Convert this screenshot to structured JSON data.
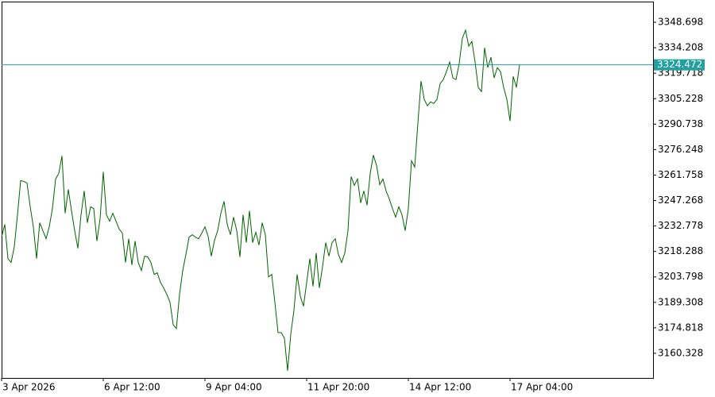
{
  "chart_data": {
    "type": "line",
    "color": "#006400",
    "current_price": 3324.472,
    "current_price_color": "#20a0a0",
    "categories": [
      "3 Apr 2026",
      null,
      null,
      null,
      null,
      null,
      null,
      null,
      null,
      null,
      null,
      null,
      null,
      null,
      null,
      null,
      null,
      null,
      null,
      null,
      null,
      null,
      null,
      null,
      null,
      null,
      null,
      null,
      null,
      null,
      null,
      null,
      "6 Apr 12:00",
      null,
      null,
      null,
      null,
      null,
      null,
      null,
      null,
      null,
      null,
      null,
      null,
      null,
      null,
      null,
      null,
      null,
      null,
      null,
      null,
      null,
      null,
      null,
      null,
      null,
      null,
      null,
      null,
      null,
      null,
      null,
      "9 Apr 04:00",
      null,
      null,
      null,
      null,
      null,
      null,
      null,
      null,
      null,
      null,
      null,
      null,
      null,
      null,
      null,
      null,
      null,
      null,
      null,
      null,
      null,
      null,
      null,
      null,
      null,
      null,
      null,
      null,
      null,
      null,
      null,
      "11 Apr 20:00",
      null,
      null,
      null,
      null,
      null,
      null,
      null,
      null,
      null,
      null,
      null,
      null,
      null,
      null,
      null,
      null,
      null,
      null,
      null,
      null,
      null,
      null,
      null,
      null,
      null,
      null,
      null,
      null,
      null,
      null,
      null,
      "14 Apr 12:00",
      null,
      null,
      null,
      null,
      null,
      null,
      null,
      null,
      null,
      null,
      null,
      null,
      null,
      null,
      null,
      null,
      null,
      null,
      null,
      null,
      null,
      null,
      null,
      null,
      null,
      null,
      null,
      null,
      null,
      null,
      null,
      "17 Apr 04:00",
      null,
      null,
      null
    ],
    "values": [
      3226.4,
      3233.7,
      3214.2,
      3212.0,
      3221.0,
      3239.1,
      3258.6,
      3258.1,
      3257.2,
      3243.7,
      3232.3,
      3214.2,
      3234.6,
      3230.1,
      3225.5,
      3232.3,
      3242.7,
      3259.5,
      3262.7,
      3272.6,
      3240.0,
      3253.6,
      3241.4,
      3230.1,
      3220.1,
      3239.1,
      3252.7,
      3234.6,
      3243.7,
      3242.7,
      3224.2,
      3236.9,
      3263.6,
      3239.1,
      3235.5,
      3240.0,
      3235.5,
      3231.0,
      3228.7,
      3212.0,
      3225.5,
      3210.6,
      3224.2,
      3212.0,
      3207.4,
      3215.6,
      3215.1,
      3212.0,
      3205.2,
      3206.1,
      3200.6,
      3197.5,
      3193.8,
      3189.3,
      3176.6,
      3174.4,
      3193.8,
      3207.4,
      3216.5,
      3226.4,
      3227.8,
      3226.4,
      3225.5,
      3228.7,
      3232.3,
      3226.9,
      3215.6,
      3224.6,
      3230.1,
      3240.0,
      3246.8,
      3233.7,
      3227.8,
      3237.8,
      3230.1,
      3215.1,
      3239.1,
      3223.3,
      3241.4,
      3223.3,
      3229.2,
      3221.9,
      3234.6,
      3227.8,
      3203.8,
      3205.2,
      3189.3,
      3172.1,
      3172.1,
      3168.9,
      3150.4,
      3171.2,
      3184.8,
      3205.2,
      3192.9,
      3187.1,
      3200.6,
      3214.2,
      3198.4,
      3217.4,
      3197.5,
      3209.7,
      3223.3,
      3215.6,
      3223.3,
      3225.5,
      3216.5,
      3212.0,
      3217.4,
      3230.1,
      3260.9,
      3255.9,
      3259.5,
      3245.9,
      3252.7,
      3244.6,
      3262.7,
      3273.1,
      3267.2,
      3256.3,
      3259.5,
      3252.7,
      3248.2,
      3242.7,
      3237.8,
      3243.7,
      3239.1,
      3230.1,
      3242.7,
      3269.9,
      3266.3,
      3291.2,
      3315.2,
      3304.8,
      3301.2,
      3303.4,
      3302.5,
      3304.8,
      3313.8,
      3316.1,
      3320.6,
      3326.1,
      3317.0,
      3316.1,
      3325.2,
      3339.6,
      3344.2,
      3335.1,
      3337.8,
      3326.1,
      3311.6,
      3309.3,
      3334.2,
      3322.9,
      3328.8,
      3317.0,
      3322.9,
      3320.6,
      3311.6,
      3304.8,
      3292.5,
      3317.9,
      3311.6,
      3324.5
    ],
    "ylim": [
      3146.29,
      3360.47
    ],
    "yticks": [
      3348.698,
      3334.208,
      3319.718,
      3305.228,
      3290.738,
      3276.248,
      3261.758,
      3247.268,
      3232.778,
      3218.288,
      3203.798,
      3189.308,
      3174.818,
      3160.328
    ]
  }
}
